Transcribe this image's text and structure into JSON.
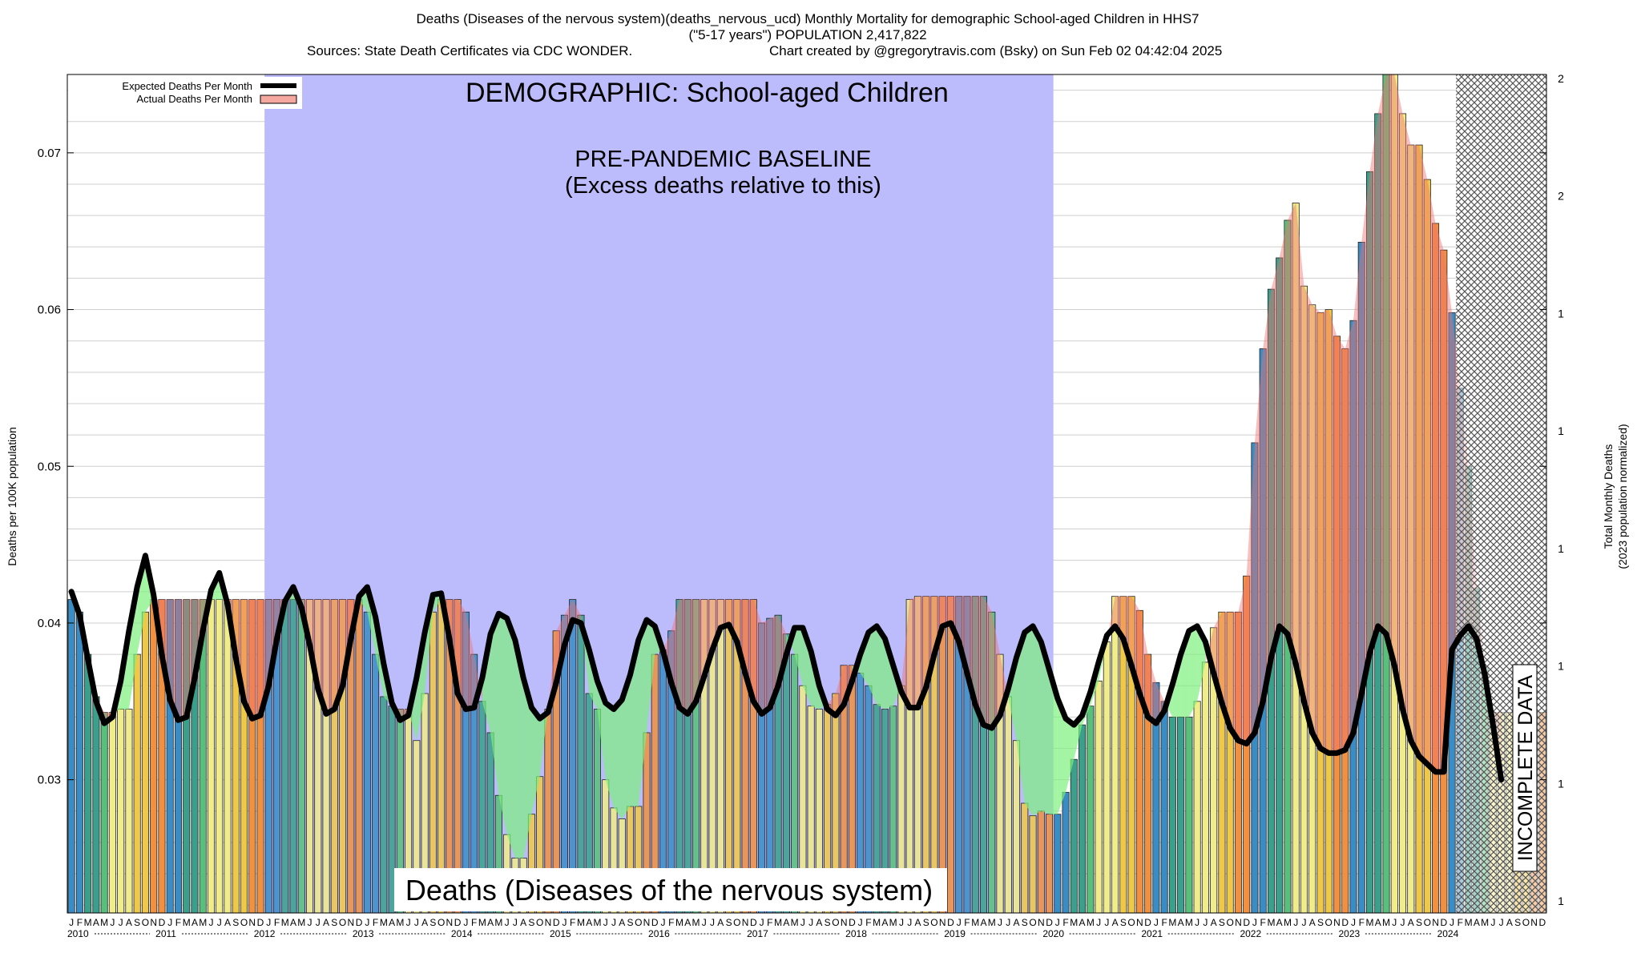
{
  "header": {
    "line1": "Deaths (Diseases of the nervous system)(deaths_nervous_ucd) Monthly Mortality for demographic School-aged Children in HHS7",
    "line2": "(\"5-17 years\") POPULATION 2,417,822",
    "line3_left": "Sources: State Death Certificates via CDC WONDER.",
    "line3_right": "Chart created by @gregorytravis.com (Bsky) on Sun Feb 02 04:42:04 2025"
  },
  "legend": {
    "expected_label": "Expected Deaths Per Month",
    "actual_label": "Actual Deaths Per Month",
    "position": "top-left"
  },
  "annotations": {
    "demographic": "DEMOGRAPHIC: School-aged Children",
    "baseline_line1": "PRE-PANDEMIC BASELINE",
    "baseline_line2": "(Excess deaths relative to this)",
    "cause": "Deaths (Diseases of the nervous system)",
    "incomplete": "INCOMPLETE DATA"
  },
  "colors": {
    "baseline_region": "#bcbcfc",
    "excess_fill": "#f07070",
    "deficit_fill": "#7cf07c",
    "expected_line": "#000000",
    "incomplete_hatch": "#555555",
    "bar_palette": [
      "#3a8cc4",
      "#3aa08c",
      "#58c07a",
      "#f0ec8a",
      "#f0c848",
      "#f09040"
    ]
  },
  "chart_data": {
    "type": "bar",
    "ylabel": "Deaths per 100K population",
    "y2label_line1": "Total Monthly Deaths",
    "y2label_line2": "(2023 population normalized)",
    "ylim": [
      0.0215,
      0.075
    ],
    "yticks": [
      "0.03",
      "0.04",
      "0.05",
      "0.06",
      "0.07"
    ],
    "y2ticks": [
      "2",
      "2",
      "1",
      "1",
      "1",
      "1",
      "1",
      "1"
    ],
    "grid": true,
    "month_letters": [
      "J",
      "F",
      "M",
      "A",
      "M",
      "J",
      "J",
      "A",
      "S",
      "O",
      "N",
      "D"
    ],
    "years": [
      "2010",
      "2011",
      "2012",
      "2013",
      "2014",
      "2015",
      "2016",
      "2017",
      "2018",
      "2019",
      "2020",
      "2021",
      "2022",
      "2023",
      "2024"
    ],
    "start": "2010-01",
    "baseline_period": [
      "2012-01",
      "2019-12"
    ],
    "incomplete_period": [
      "2024-02",
      "2024-12"
    ],
    "series": [
      {
        "name": "Actual Deaths Per Month",
        "values": [
          0.0415,
          0.0407,
          0.038,
          0.0353,
          0.0343,
          0.0343,
          0.0345,
          0.0345,
          0.038,
          0.0407,
          0.0415,
          0.0415,
          0.0415,
          0.0415,
          0.0415,
          0.0415,
          0.0415,
          0.0415,
          0.0415,
          0.0415,
          0.0415,
          0.0415,
          0.0415,
          0.0415,
          0.0415,
          0.0415,
          0.0415,
          0.0415,
          0.0415,
          0.0415,
          0.0415,
          0.0415,
          0.0415,
          0.0415,
          0.0415,
          0.0415,
          0.0407,
          0.038,
          0.0353,
          0.0347,
          0.0345,
          0.0345,
          0.0325,
          0.0355,
          0.0407,
          0.0415,
          0.0415,
          0.0415,
          0.0407,
          0.038,
          0.035,
          0.033,
          0.029,
          0.0265,
          0.025,
          0.025,
          0.0278,
          0.0302,
          0.0345,
          0.0395,
          0.0405,
          0.0415,
          0.0405,
          0.0355,
          0.0345,
          0.03,
          0.0282,
          0.0275,
          0.0283,
          0.0283,
          0.033,
          0.038,
          0.0383,
          0.0395,
          0.0415,
          0.0415,
          0.0415,
          0.0415,
          0.0415,
          0.0415,
          0.0415,
          0.0415,
          0.0415,
          0.0415,
          0.04,
          0.0403,
          0.0405,
          0.0393,
          0.038,
          0.036,
          0.0347,
          0.0345,
          0.0348,
          0.0355,
          0.0373,
          0.0373,
          0.0368,
          0.036,
          0.0348,
          0.0345,
          0.0347,
          0.036,
          0.0415,
          0.0417,
          0.0417,
          0.0417,
          0.0417,
          0.0417,
          0.0417,
          0.0417,
          0.0417,
          0.0417,
          0.0407,
          0.038,
          0.0353,
          0.0325,
          0.0285,
          0.0277,
          0.028,
          0.0278,
          0.0278,
          0.0292,
          0.0313,
          0.0335,
          0.0347,
          0.0363,
          0.0388,
          0.0417,
          0.0417,
          0.0417,
          0.0408,
          0.038,
          0.0362,
          0.035,
          0.034,
          0.034,
          0.034,
          0.035,
          0.0375,
          0.0397,
          0.0407,
          0.0407,
          0.0407,
          0.043,
          0.0515,
          0.0575,
          0.0613,
          0.0633,
          0.0657,
          0.0668,
          0.0615,
          0.0603,
          0.0598,
          0.06,
          0.0583,
          0.0575,
          0.0593,
          0.0643,
          0.0688,
          0.0725,
          0.075,
          0.075,
          0.0725,
          0.0705,
          0.0705,
          0.0683,
          0.0655,
          0.0638,
          0.0598,
          0.055,
          0.05,
          0.0422,
          0.0372,
          0.0343,
          0.0343,
          0.0343,
          0.0343,
          0.0343,
          0.0343,
          0.0343
        ]
      },
      {
        "name": "Expected Deaths Per Month",
        "values": [
          0.042,
          0.0405,
          0.0377,
          0.035,
          0.0336,
          0.034,
          0.0363,
          0.0395,
          0.0423,
          0.0443,
          0.0418,
          0.038,
          0.0351,
          0.0338,
          0.034,
          0.0365,
          0.0395,
          0.0421,
          0.0432,
          0.0412,
          0.0378,
          0.035,
          0.0339,
          0.0341,
          0.036,
          0.039,
          0.0414,
          0.0423,
          0.041,
          0.0386,
          0.0358,
          0.0342,
          0.0345,
          0.036,
          0.039,
          0.0417,
          0.0423,
          0.0404,
          0.0374,
          0.0349,
          0.0338,
          0.0341,
          0.0365,
          0.0394,
          0.0418,
          0.0419,
          0.039,
          0.0355,
          0.0345,
          0.0346,
          0.0365,
          0.0393,
          0.0406,
          0.0403,
          0.0389,
          0.0365,
          0.0346,
          0.0339,
          0.0343,
          0.0362,
          0.0386,
          0.0402,
          0.04,
          0.0383,
          0.0363,
          0.0349,
          0.0345,
          0.0351,
          0.0367,
          0.0389,
          0.0402,
          0.0398,
          0.0382,
          0.0362,
          0.0346,
          0.0342,
          0.035,
          0.0366,
          0.0383,
          0.0397,
          0.0399,
          0.0388,
          0.0368,
          0.035,
          0.0342,
          0.0346,
          0.036,
          0.038,
          0.0397,
          0.0397,
          0.0382,
          0.036,
          0.0345,
          0.0341,
          0.0348,
          0.0363,
          0.038,
          0.0394,
          0.0398,
          0.039,
          0.0373,
          0.0356,
          0.0346,
          0.0346,
          0.0359,
          0.038,
          0.0398,
          0.04,
          0.0388,
          0.0368,
          0.0348,
          0.0335,
          0.0333,
          0.0341,
          0.0358,
          0.0378,
          0.0394,
          0.0398,
          0.0388,
          0.037,
          0.0352,
          0.0339,
          0.0335,
          0.0341,
          0.0356,
          0.0375,
          0.0392,
          0.0398,
          0.039,
          0.0373,
          0.0355,
          0.034,
          0.0336,
          0.0344,
          0.0361,
          0.038,
          0.0395,
          0.0398,
          0.0388,
          0.0368,
          0.0349,
          0.0333,
          0.0325,
          0.0323,
          0.033,
          0.035,
          0.0378,
          0.0398,
          0.0393,
          0.0374,
          0.035,
          0.033,
          0.032,
          0.0317,
          0.0317,
          0.0319,
          0.033,
          0.0355,
          0.0381,
          0.0398,
          0.0393,
          0.0373,
          0.0345,
          0.0325,
          0.0315,
          0.031,
          0.0305,
          0.0305,
          0.0383,
          0.0392,
          0.0398,
          0.039,
          0.0367,
          0.0335,
          0.03
        ]
      }
    ]
  }
}
